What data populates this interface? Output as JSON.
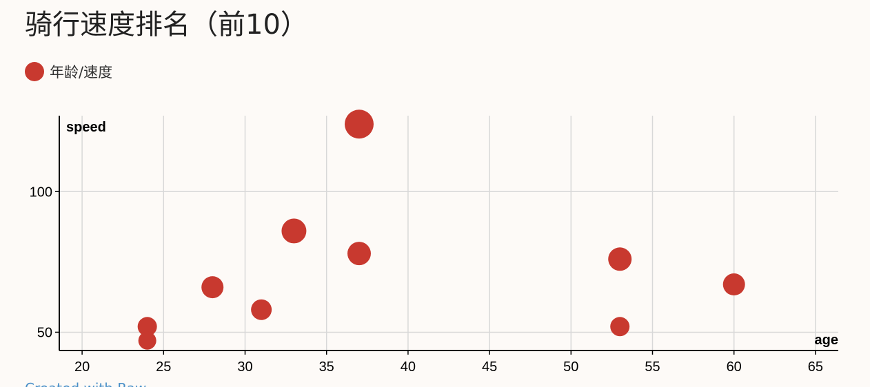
{
  "chart_data": {
    "type": "scatter",
    "title": "骑行速度排名（前10）",
    "legend": [
      "年龄/速度"
    ],
    "legend_position": "top-left",
    "xlabel": "age",
    "ylabel": "speed",
    "xlim": [
      18.6,
      66.4
    ],
    "ylim": [
      43.5,
      127
    ],
    "x_ticks": [
      20,
      25,
      30,
      35,
      40,
      45,
      50,
      55,
      60,
      65
    ],
    "y_ticks": [
      50,
      100
    ],
    "grid": true,
    "color": "#c8392f",
    "series": [
      {
        "name": "年龄/速度",
        "points": [
          {
            "x": 37,
            "y": 124,
            "size": 21
          },
          {
            "x": 33,
            "y": 86,
            "size": 18
          },
          {
            "x": 37,
            "y": 78,
            "size": 17
          },
          {
            "x": 53,
            "y": 76,
            "size": 17
          },
          {
            "x": 60,
            "y": 67,
            "size": 16
          },
          {
            "x": 28,
            "y": 66,
            "size": 16
          },
          {
            "x": 31,
            "y": 58,
            "size": 15
          },
          {
            "x": 53,
            "y": 52,
            "size": 14
          },
          {
            "x": 24,
            "y": 52,
            "size": 14
          },
          {
            "x": 24,
            "y": 47,
            "size": 13
          }
        ]
      }
    ]
  },
  "footer": {
    "link_text": "Created with Raw"
  }
}
